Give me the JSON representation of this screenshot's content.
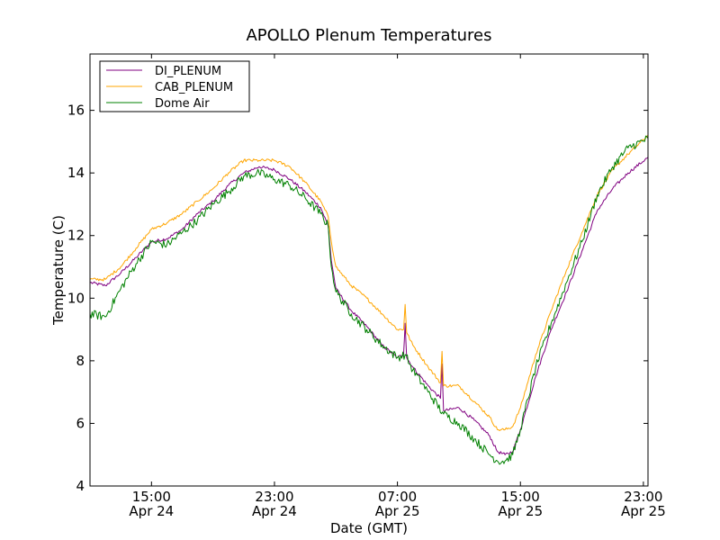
{
  "chart_data": {
    "type": "line",
    "title": "APOLLO Plenum Temperatures",
    "xlabel": "Date (GMT)",
    "ylabel": "Temperature (C)",
    "xlim": [
      11.0,
      47.3
    ],
    "ylim": [
      4,
      17.8
    ],
    "grid": false,
    "legend_position": "top-left",
    "x_ticks": [
      {
        "value": 15,
        "line1": "15:00",
        "line2": "Apr 24"
      },
      {
        "value": 23,
        "line1": "23:00",
        "line2": "Apr 24"
      },
      {
        "value": 31,
        "line1": "07:00",
        "line2": "Apr 25"
      },
      {
        "value": 39,
        "line1": "15:00",
        "line2": "Apr 25"
      },
      {
        "value": 47,
        "line1": "23:00",
        "line2": "Apr 25"
      }
    ],
    "y_ticks": [
      {
        "value": 4,
        "label": "4"
      },
      {
        "value": 6,
        "label": "6"
      },
      {
        "value": 8,
        "label": "8"
      },
      {
        "value": 10,
        "label": "10"
      },
      {
        "value": 12,
        "label": "12"
      },
      {
        "value": 14,
        "label": "14"
      },
      {
        "value": 16,
        "label": "16"
      }
    ],
    "x_unit": "hours since Apr 24 00:00 GMT",
    "series": [
      {
        "name": "DI_PLENUM",
        "color": "#800080",
        "noise": 0.05,
        "points": [
          [
            11.0,
            10.5
          ],
          [
            12.0,
            10.4
          ],
          [
            13.0,
            10.8
          ],
          [
            14.0,
            11.3
          ],
          [
            15.0,
            11.8
          ],
          [
            16.0,
            11.9
          ],
          [
            17.0,
            12.2
          ],
          [
            18.0,
            12.7
          ],
          [
            19.0,
            13.1
          ],
          [
            20.0,
            13.6
          ],
          [
            21.0,
            14.0
          ],
          [
            22.0,
            14.2
          ],
          [
            23.0,
            14.1
          ],
          [
            24.0,
            13.8
          ],
          [
            25.0,
            13.4
          ],
          [
            26.0,
            12.9
          ],
          [
            26.5,
            12.3
          ],
          [
            26.7,
            11.2
          ],
          [
            27.0,
            10.3
          ],
          [
            28.0,
            9.6
          ],
          [
            29.0,
            9.1
          ],
          [
            30.0,
            8.5
          ],
          [
            31.0,
            8.1
          ],
          [
            31.4,
            8.2
          ],
          [
            31.5,
            9.2
          ],
          [
            31.6,
            8.1
          ],
          [
            32.0,
            7.8
          ],
          [
            33.0,
            7.2
          ],
          [
            33.8,
            6.8
          ],
          [
            33.9,
            7.9
          ],
          [
            34.0,
            6.4
          ],
          [
            35.0,
            6.5
          ],
          [
            36.0,
            6.1
          ],
          [
            37.0,
            5.6
          ],
          [
            37.5,
            5.1
          ],
          [
            38.0,
            5.0
          ],
          [
            38.5,
            5.1
          ],
          [
            39.0,
            5.8
          ],
          [
            40.0,
            7.5
          ],
          [
            41.0,
            9.0
          ],
          [
            42.0,
            10.2
          ],
          [
            43.0,
            11.5
          ],
          [
            44.0,
            12.8
          ],
          [
            45.0,
            13.5
          ],
          [
            46.0,
            14.0
          ],
          [
            47.3,
            14.5
          ]
        ]
      },
      {
        "name": "CAB_PLENUM",
        "color": "#ffa500",
        "noise": 0.05,
        "points": [
          [
            11.0,
            10.6
          ],
          [
            12.0,
            10.6
          ],
          [
            13.0,
            11.0
          ],
          [
            14.0,
            11.6
          ],
          [
            15.0,
            12.2
          ],
          [
            16.0,
            12.4
          ],
          [
            17.0,
            12.7
          ],
          [
            18.0,
            13.1
          ],
          [
            19.0,
            13.5
          ],
          [
            20.0,
            14.0
          ],
          [
            21.0,
            14.4
          ],
          [
            22.0,
            14.4
          ],
          [
            23.0,
            14.4
          ],
          [
            24.0,
            14.2
          ],
          [
            25.0,
            13.7
          ],
          [
            26.0,
            13.1
          ],
          [
            26.5,
            12.6
          ],
          [
            26.7,
            11.8
          ],
          [
            27.0,
            11.0
          ],
          [
            28.0,
            10.4
          ],
          [
            29.0,
            10.0
          ],
          [
            30.0,
            9.5
          ],
          [
            31.0,
            9.0
          ],
          [
            31.4,
            9.0
          ],
          [
            31.5,
            9.8
          ],
          [
            31.6,
            8.9
          ],
          [
            32.0,
            8.5
          ],
          [
            33.0,
            7.8
          ],
          [
            33.8,
            7.3
          ],
          [
            33.9,
            8.3
          ],
          [
            34.0,
            7.2
          ],
          [
            35.0,
            7.2
          ],
          [
            36.0,
            6.7
          ],
          [
            37.0,
            6.2
          ],
          [
            37.5,
            5.8
          ],
          [
            38.0,
            5.8
          ],
          [
            38.5,
            5.9
          ],
          [
            39.0,
            6.5
          ],
          [
            40.0,
            8.2
          ],
          [
            41.0,
            9.6
          ],
          [
            42.0,
            10.9
          ],
          [
            43.0,
            12.1
          ],
          [
            44.0,
            13.3
          ],
          [
            45.0,
            14.1
          ],
          [
            46.0,
            14.6
          ],
          [
            47.3,
            15.2
          ]
        ]
      },
      {
        "name": "Dome Air",
        "color": "#008000",
        "noise": 0.14,
        "points": [
          [
            11.0,
            9.5
          ],
          [
            12.0,
            9.4
          ],
          [
            13.0,
            10.3
          ],
          [
            14.0,
            11.1
          ],
          [
            15.0,
            11.8
          ],
          [
            16.0,
            11.7
          ],
          [
            17.0,
            12.1
          ],
          [
            18.0,
            12.5
          ],
          [
            19.0,
            13.0
          ],
          [
            20.0,
            13.4
          ],
          [
            21.0,
            13.9
          ],
          [
            22.0,
            14.0
          ],
          [
            23.0,
            13.8
          ],
          [
            24.0,
            13.6
          ],
          [
            25.0,
            13.2
          ],
          [
            26.0,
            12.7
          ],
          [
            26.5,
            12.3
          ],
          [
            26.7,
            11.0
          ],
          [
            27.0,
            10.2
          ],
          [
            28.0,
            9.5
          ],
          [
            29.0,
            9.0
          ],
          [
            30.0,
            8.5
          ],
          [
            31.0,
            8.1
          ],
          [
            31.5,
            8.2
          ],
          [
            32.0,
            7.7
          ],
          [
            33.0,
            7.0
          ],
          [
            34.0,
            6.3
          ],
          [
            35.0,
            6.0
          ],
          [
            36.0,
            5.5
          ],
          [
            37.0,
            5.0
          ],
          [
            37.5,
            4.8
          ],
          [
            38.0,
            4.8
          ],
          [
            38.5,
            5.0
          ],
          [
            39.0,
            5.8
          ],
          [
            40.0,
            7.8
          ],
          [
            41.0,
            9.2
          ],
          [
            42.0,
            10.5
          ],
          [
            43.0,
            11.8
          ],
          [
            44.0,
            13.3
          ],
          [
            45.0,
            14.2
          ],
          [
            46.0,
            14.8
          ],
          [
            47.3,
            15.1
          ]
        ]
      }
    ]
  }
}
